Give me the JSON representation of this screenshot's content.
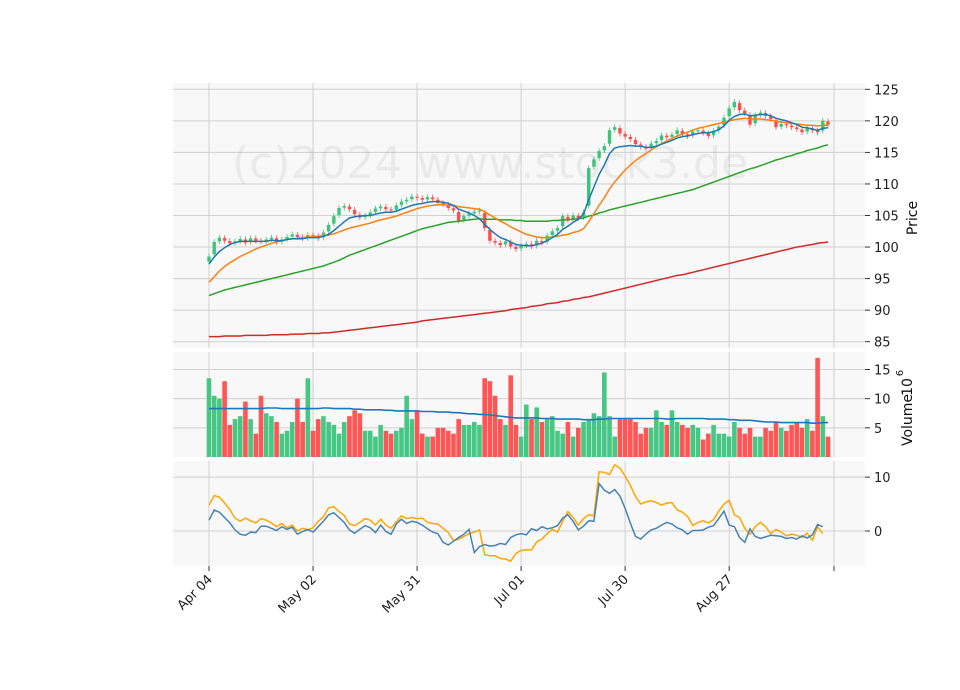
{
  "chart_data": {
    "type": "candlestick",
    "watermark": "(c)2024 www.stock3.de",
    "colors": {
      "up": "#3cc47c",
      "down": "#ff4c4c",
      "ma_short": "#1f77b4",
      "ma_mid": "#ff7f0e",
      "ma_long": "#2ca02c",
      "ma_200": "#d62728",
      "volume_ma": "#1f77b4",
      "osc_a": "#ffa500",
      "osc_b": "#4682b4",
      "panel_bg": "#f8f8f8",
      "grid": "#d0d0d0"
    },
    "x_tick_labels": [
      "Apr 04",
      "May 02",
      "May 31",
      "Jul 01",
      "Jul 30",
      "Aug 27"
    ],
    "x_tick_index": [
      0,
      20,
      40,
      60,
      80,
      100
    ],
    "price_panel": {
      "ylabel": "Price",
      "ylim": [
        84,
        126
      ],
      "yticks": [
        85,
        90,
        95,
        100,
        105,
        110,
        115,
        120,
        125
      ],
      "close": [
        98.5,
        100.8,
        101.5,
        101.0,
        100.6,
        100.9,
        101.3,
        100.7,
        101.4,
        101.0,
        100.9,
        101.2,
        101.5,
        100.8,
        101.2,
        101.6,
        102.0,
        101.6,
        101.4,
        101.9,
        101.8,
        101.4,
        102.3,
        103.5,
        104.9,
        106.2,
        106.5,
        106.0,
        105.2,
        104.7,
        105.0,
        105.5,
        106.1,
        106.4,
        106.0,
        105.8,
        106.6,
        107.2,
        107.5,
        108.0,
        107.8,
        107.5,
        107.9,
        107.6,
        107.0,
        106.8,
        106.2,
        105.8,
        104.2,
        104.9,
        105.3,
        105.6,
        105.8,
        103.0,
        101.0,
        100.7,
        100.3,
        100.9,
        100.1,
        99.7,
        100.2,
        100.5,
        100.1,
        101.0,
        100.7,
        101.8,
        102.5,
        103.0,
        104.9,
        104.3,
        105.0,
        104.6,
        105.5,
        112.5,
        113.9,
        115.2,
        116.0,
        118.5,
        119.0,
        118.0,
        117.5,
        117.1,
        116.3,
        115.9,
        115.6,
        116.4,
        116.8,
        117.7,
        117.4,
        117.8,
        118.5,
        117.9,
        117.6,
        118.3,
        118.5,
        118.1,
        117.6,
        118.4,
        119.1,
        120.5,
        122.0,
        123.0,
        121.7,
        121.2,
        119.4,
        120.9,
        121.3,
        120.8,
        120.3,
        119.0,
        119.5,
        119.3,
        119.0,
        118.7,
        118.2,
        118.9,
        118.5,
        118.2,
        120.0,
        119.4
      ],
      "ma_short": [
        97.3,
        98.4,
        99.3,
        99.9,
        100.4,
        100.7,
        100.9,
        100.9,
        100.9,
        100.9,
        100.9,
        100.9,
        101.1,
        101.0,
        101.0,
        101.2,
        101.3,
        101.3,
        101.3,
        101.5,
        101.5,
        101.5,
        101.7,
        102.0,
        102.6,
        103.3,
        104.0,
        104.6,
        104.8,
        104.9,
        105.0,
        105.0,
        105.2,
        105.4,
        105.5,
        105.5,
        105.7,
        106.0,
        106.3,
        106.6,
        106.8,
        106.9,
        107.1,
        107.2,
        107.2,
        107.1,
        106.9,
        106.6,
        106.0,
        105.7,
        105.4,
        105.0,
        104.5,
        103.6,
        102.8,
        102.1,
        101.5,
        101.2,
        100.8,
        100.4,
        100.3,
        100.2,
        100.2,
        100.4,
        100.6,
        101.0,
        101.5,
        102.0,
        102.8,
        103.3,
        103.9,
        104.4,
        105.2,
        107.5,
        109.5,
        111.5,
        113.0,
        114.8,
        115.7,
        115.9,
        116.0,
        116.1,
        116.0,
        116.0,
        115.8,
        115.8,
        116.0,
        116.3,
        116.6,
        116.9,
        117.3,
        117.5,
        117.6,
        117.8,
        118.0,
        118.1,
        118.1,
        118.3,
        118.6,
        119.2,
        120.1,
        120.7,
        121.0,
        121.1,
        120.8,
        120.9,
        121.0,
        121.0,
        120.8,
        120.4,
        120.2,
        120.0,
        119.7,
        119.4,
        119.0,
        118.9,
        118.7,
        118.5,
        118.8,
        118.9
      ],
      "ma_mid": [
        94.4,
        95.3,
        96.2,
        96.9,
        97.5,
        98.0,
        98.5,
        98.9,
        99.3,
        99.7,
        100.0,
        100.3,
        100.6,
        100.8,
        101.0,
        101.2,
        101.3,
        101.4,
        101.5,
        101.6,
        101.6,
        101.7,
        101.8,
        101.9,
        102.1,
        102.4,
        102.7,
        103.0,
        103.2,
        103.4,
        103.6,
        103.8,
        104.1,
        104.3,
        104.5,
        104.7,
        104.9,
        105.2,
        105.5,
        105.8,
        106.1,
        106.3,
        106.5,
        106.6,
        106.7,
        106.7,
        106.6,
        106.6,
        106.4,
        106.3,
        106.2,
        106.1,
        106.0,
        105.6,
        105.1,
        104.6,
        104.1,
        103.7,
        103.2,
        102.8,
        102.4,
        102.0,
        101.8,
        101.6,
        101.5,
        101.5,
        101.6,
        101.7,
        101.9,
        102.0,
        102.3,
        102.5,
        102.9,
        104.0,
        105.3,
        106.6,
        107.8,
        109.2,
        110.3,
        111.3,
        112.2,
        113.0,
        113.7,
        114.3,
        114.8,
        115.4,
        115.9,
        116.4,
        116.8,
        117.2,
        117.6,
        117.9,
        118.2,
        118.5,
        118.8,
        119.0,
        119.2,
        119.4,
        119.6,
        119.8,
        120.0,
        120.2,
        120.3,
        120.4,
        120.3,
        120.3,
        120.3,
        120.2,
        120.1,
        119.9,
        119.8,
        119.7,
        119.6,
        119.5,
        119.4,
        119.3,
        119.3,
        119.2,
        119.3,
        119.3
      ],
      "ma_long": [
        92.3,
        92.6,
        92.9,
        93.2,
        93.4,
        93.6,
        93.8,
        94.0,
        94.2,
        94.4,
        94.6,
        94.8,
        95.0,
        95.2,
        95.4,
        95.6,
        95.8,
        96.0,
        96.2,
        96.4,
        96.6,
        96.8,
        97.0,
        97.3,
        97.6,
        97.9,
        98.3,
        98.7,
        99.0,
        99.3,
        99.6,
        99.9,
        100.2,
        100.5,
        100.8,
        101.1,
        101.4,
        101.7,
        102.0,
        102.3,
        102.6,
        102.9,
        103.1,
        103.3,
        103.5,
        103.7,
        103.9,
        104.0,
        104.1,
        104.2,
        104.3,
        104.4,
        104.5,
        104.4,
        104.4,
        104.4,
        104.3,
        104.3,
        104.3,
        104.2,
        104.2,
        104.1,
        104.1,
        104.1,
        104.1,
        104.1,
        104.2,
        104.2,
        104.3,
        104.3,
        104.4,
        104.5,
        104.6,
        104.9,
        105.1,
        105.4,
        105.6,
        105.9,
        106.1,
        106.3,
        106.5,
        106.7,
        106.9,
        107.1,
        107.3,
        107.5,
        107.7,
        107.9,
        108.1,
        108.3,
        108.5,
        108.7,
        108.9,
        109.1,
        109.4,
        109.7,
        110.0,
        110.3,
        110.6,
        110.9,
        111.2,
        111.5,
        111.8,
        112.1,
        112.4,
        112.6,
        112.9,
        113.2,
        113.5,
        113.8,
        114.0,
        114.3,
        114.5,
        114.8,
        115.0,
        115.3,
        115.5,
        115.7,
        116.0,
        116.2
      ],
      "ma_200": [
        85.8,
        85.8,
        85.8,
        85.9,
        85.9,
        85.9,
        85.9,
        86.0,
        86.0,
        86.0,
        86.0,
        86.0,
        86.1,
        86.1,
        86.1,
        86.1,
        86.2,
        86.2,
        86.2,
        86.3,
        86.3,
        86.3,
        86.4,
        86.4,
        86.5,
        86.6,
        86.7,
        86.8,
        86.9,
        87.0,
        87.1,
        87.2,
        87.3,
        87.4,
        87.5,
        87.6,
        87.7,
        87.8,
        87.9,
        88.0,
        88.1,
        88.3,
        88.4,
        88.5,
        88.6,
        88.7,
        88.8,
        88.9,
        89.0,
        89.1,
        89.2,
        89.3,
        89.4,
        89.5,
        89.6,
        89.7,
        89.8,
        89.9,
        90.1,
        90.2,
        90.3,
        90.4,
        90.6,
        90.7,
        90.8,
        91.0,
        91.1,
        91.2,
        91.4,
        91.5,
        91.7,
        91.8,
        92.0,
        92.1,
        92.3,
        92.5,
        92.7,
        92.9,
        93.1,
        93.3,
        93.5,
        93.7,
        93.9,
        94.1,
        94.3,
        94.5,
        94.7,
        94.9,
        95.1,
        95.3,
        95.5,
        95.6,
        95.8,
        96.0,
        96.2,
        96.4,
        96.6,
        96.8,
        97.0,
        97.2,
        97.4,
        97.6,
        97.8,
        98.0,
        98.2,
        98.4,
        98.6,
        98.8,
        99.0,
        99.2,
        99.4,
        99.6,
        99.8,
        100.0,
        100.1,
        100.3,
        100.4,
        100.6,
        100.7,
        100.8
      ]
    },
    "volume_panel": {
      "ylabel": "Volume",
      "unit_exponent": "6",
      "ylim": [
        0,
        18
      ],
      "yticks": [
        5,
        10,
        15
      ],
      "volume": [
        13.5,
        10.5,
        10.0,
        13.0,
        5.5,
        6.5,
        7.0,
        9.5,
        6.5,
        4.0,
        10.5,
        7.5,
        7.0,
        6.0,
        4.0,
        4.5,
        6.0,
        10.0,
        6.0,
        13.5,
        4.5,
        6.5,
        7.0,
        6.0,
        5.5,
        4.0,
        6.0,
        7.0,
        8.0,
        7.5,
        4.5,
        4.5,
        3.5,
        5.5,
        4.5,
        4.0,
        4.5,
        5.0,
        10.5,
        6.5,
        8.0,
        4.0,
        3.5,
        3.5,
        5.0,
        5.0,
        4.5,
        4.0,
        6.5,
        5.5,
        5.5,
        6.0,
        5.5,
        13.5,
        13.0,
        10.5,
        6.5,
        5.5,
        14.0,
        5.5,
        3.5,
        9.0,
        6.5,
        8.5,
        6.0,
        6.5,
        7.0,
        4.5,
        4.0,
        6.0,
        3.5,
        5.0,
        6.0,
        6.5,
        7.5,
        7.0,
        14.5,
        7.0,
        3.5,
        6.5,
        6.5,
        6.5,
        6.0,
        4.0,
        5.0,
        5.0,
        8.0,
        6.0,
        5.5,
        8.0,
        6.0,
        5.5,
        5.0,
        5.5,
        5.0,
        3.0,
        4.0,
        5.5,
        4.0,
        4.0,
        3.5,
        6.0,
        5.0,
        4.0,
        5.0,
        3.5,
        3.5,
        5.0,
        4.5,
        6.0,
        5.0,
        4.5,
        5.5,
        6.0,
        5.0,
        6.5,
        4.5,
        17.0,
        7.0,
        3.5
      ],
      "volume_ma": [
        8.3,
        8.3,
        8.3,
        8.3,
        8.3,
        8.3,
        8.3,
        8.3,
        8.3,
        8.3,
        8.3,
        8.4,
        8.4,
        8.4,
        8.3,
        8.3,
        8.3,
        8.3,
        8.3,
        8.3,
        8.3,
        8.3,
        8.4,
        8.4,
        8.3,
        8.3,
        8.3,
        8.3,
        8.2,
        8.2,
        8.1,
        8.1,
        8.1,
        8.1,
        8.0,
        8.0,
        7.9,
        7.9,
        7.9,
        7.9,
        7.9,
        7.8,
        7.8,
        7.8,
        7.7,
        7.7,
        7.7,
        7.6,
        7.6,
        7.5,
        7.4,
        7.4,
        7.3,
        7.3,
        7.2,
        7.1,
        7.0,
        6.9,
        6.8,
        6.7,
        6.7,
        6.7,
        6.7,
        6.7,
        6.6,
        6.6,
        6.6,
        6.5,
        6.5,
        6.5,
        6.5,
        6.5,
        6.4,
        6.4,
        6.4,
        6.5,
        6.5,
        6.6,
        6.6,
        6.6,
        6.6,
        6.6,
        6.6,
        6.6,
        6.6,
        6.6,
        6.6,
        6.6,
        6.5,
        6.5,
        6.6,
        6.6,
        6.6,
        6.6,
        6.6,
        6.6,
        6.5,
        6.5,
        6.5,
        6.5,
        6.4,
        6.4,
        6.3,
        6.3,
        6.3,
        6.2,
        6.1,
        6.0,
        6.0,
        6.0,
        5.9,
        5.9,
        5.9,
        5.9,
        5.9,
        5.9,
        5.8,
        5.8,
        5.9,
        5.9
      ]
    },
    "oscillator_panel": {
      "ylim": [
        -6.5,
        13.0
      ],
      "yticks": [
        0,
        10
      ],
      "series_a": [
        4.8,
        6.6,
        6.3,
        5.2,
        4.0,
        2.4,
        1.8,
        2.4,
        1.9,
        1.5,
        2.3,
        2.0,
        1.5,
        0.8,
        1.4,
        0.6,
        1.1,
        0.0,
        0.5,
        0.2,
        0.6,
        1.8,
        2.6,
        4.3,
        4.5,
        3.6,
        2.9,
        1.3,
        1.0,
        1.6,
        2.3,
        2.0,
        1.1,
        2.2,
        1.1,
        0.5,
        1.7,
        2.8,
        2.3,
        2.5,
        2.3,
        2.4,
        1.6,
        1.4,
        1.3,
        0.5,
        -0.3,
        -1.8,
        -1.5,
        -1.0,
        -0.5,
        -0.2,
        0.2,
        -4.4,
        -4.6,
        -4.6,
        -5.1,
        -5.2,
        -5.6,
        -4.2,
        -3.6,
        -3.5,
        -3.5,
        -2.0,
        -1.5,
        -0.5,
        0.3,
        -0.2,
        1.8,
        3.6,
        2.5,
        1.1,
        2.3,
        3.0,
        2.8,
        11.0,
        10.9,
        10.5,
        12.3,
        11.7,
        10.2,
        8.5,
        6.4,
        5.0,
        5.4,
        5.6,
        5.3,
        4.8,
        5.2,
        5.3,
        3.9,
        3.5,
        2.7,
        1.0,
        1.6,
        1.9,
        1.5,
        2.1,
        3.7,
        5.0,
        5.7,
        3.0,
        2.5,
        0.5,
        -0.6,
        0.8,
        1.6,
        0.8,
        -0.5,
        0.3,
        -0.2,
        -0.9,
        -0.6,
        -0.8,
        -1.2,
        -0.4,
        -1.7,
        0.8,
        -0.5
      ],
      "series_b": [
        2.0,
        3.9,
        3.5,
        2.5,
        1.5,
        0.2,
        -0.6,
        -0.8,
        -0.2,
        -0.3,
        0.9,
        0.9,
        0.5,
        0.1,
        0.8,
        0.3,
        0.7,
        -0.6,
        -0.1,
        0.3,
        -0.2,
        0.8,
        1.8,
        3.0,
        3.4,
        2.5,
        1.6,
        0.2,
        -0.4,
        0.3,
        1.0,
        0.6,
        -0.3,
        1.1,
        -0.1,
        -0.6,
        1.3,
        2.2,
        1.4,
        1.8,
        1.6,
        1.1,
        0.4,
        -0.2,
        -0.5,
        -2.1,
        -2.6,
        -1.9,
        -1.2,
        -0.6,
        0.3,
        -4.0,
        -2.9,
        -2.5,
        -2.8,
        -2.7,
        -2.3,
        -2.5,
        -1.2,
        -0.7,
        -0.5,
        -0.7,
        0.4,
        0.1,
        0.8,
        0.4,
        0.6,
        1.0,
        2.4,
        3.0,
        1.8,
        0.2,
        0.9,
        1.9,
        1.8,
        8.8,
        7.6,
        7.0,
        7.7,
        6.5,
        4.2,
        1.5,
        -1.0,
        -1.5,
        -0.6,
        0.2,
        0.5,
        1.1,
        1.6,
        1.3,
        0.6,
        0.2,
        -0.6,
        0.1,
        0.1,
        0.2,
        0.7,
        1.0,
        2.3,
        3.7,
        1.1,
        0.8,
        -1.2,
        -2.1,
        0.4,
        -1.0,
        -1.4,
        -1.1,
        -0.8,
        -0.9,
        -1.0,
        -1.4,
        -1.2,
        -1.5,
        -0.9,
        -1.3,
        -0.7,
        1.2,
        0.8
      ]
    }
  }
}
